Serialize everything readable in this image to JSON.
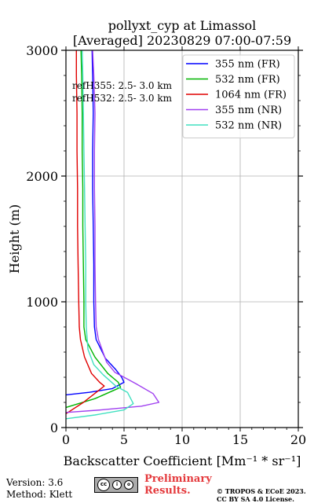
{
  "chart_data": {
    "type": "line",
    "title_line1": "pollyxt_cyp at Limassol",
    "title_line2": "[Averaged] 20230829 07:00-07:59",
    "xlabel": "Backscatter Coefficient [Mm⁻¹ * sr⁻¹]",
    "ylabel": "Height (m)",
    "xlim": [
      0,
      20
    ],
    "ylim": [
      0,
      3000
    ],
    "xticks": [
      0,
      5,
      10,
      15,
      20
    ],
    "yticks": [
      0,
      1000,
      2000,
      3000
    ],
    "grid": true,
    "legend_position": "top-right",
    "annotations": [
      "refH355:  2.5- 3.0 km",
      "refH532:  2.5- 3.0 km"
    ],
    "series": [
      {
        "name": "355 nm (FR)",
        "color": "#0000ff",
        "points": [
          [
            0.0,
            260
          ],
          [
            2.0,
            280
          ],
          [
            4.0,
            310
          ],
          [
            5.0,
            360
          ],
          [
            4.8,
            400
          ],
          [
            4.3,
            460
          ],
          [
            3.4,
            550
          ],
          [
            2.6,
            700
          ],
          [
            2.45,
            800
          ],
          [
            2.4,
            1000
          ],
          [
            2.4,
            1300
          ],
          [
            2.35,
            1600
          ],
          [
            2.3,
            1900
          ],
          [
            2.3,
            2200
          ],
          [
            2.35,
            2500
          ],
          [
            2.3,
            2800
          ],
          [
            2.25,
            3000
          ]
        ]
      },
      {
        "name": "532 nm (FR)",
        "color": "#00b400",
        "points": [
          [
            0.0,
            160
          ],
          [
            2.5,
            230
          ],
          [
            4.7,
            320
          ],
          [
            4.5,
            360
          ],
          [
            3.6,
            430
          ],
          [
            2.5,
            560
          ],
          [
            1.7,
            700
          ],
          [
            1.55,
            800
          ],
          [
            1.55,
            1000
          ],
          [
            1.5,
            1300
          ],
          [
            1.45,
            1600
          ],
          [
            1.45,
            1900
          ],
          [
            1.4,
            2200
          ],
          [
            1.4,
            2500
          ],
          [
            1.35,
            2800
          ],
          [
            1.3,
            3000
          ]
        ]
      },
      {
        "name": "1064 nm (FR)",
        "color": "#e00000",
        "points": [
          [
            0.0,
            110
          ],
          [
            1.5,
            200
          ],
          [
            3.3,
            330
          ],
          [
            2.9,
            360
          ],
          [
            2.2,
            430
          ],
          [
            1.6,
            560
          ],
          [
            1.25,
            700
          ],
          [
            1.15,
            800
          ],
          [
            1.1,
            1000
          ],
          [
            1.05,
            1300
          ],
          [
            1.0,
            1600
          ],
          [
            1.0,
            1900
          ],
          [
            0.95,
            2200
          ],
          [
            0.95,
            2500
          ],
          [
            0.9,
            2800
          ],
          [
            0.9,
            3000
          ]
        ]
      },
      {
        "name": "355 nm (NR)",
        "color": "#a040f0",
        "points": [
          [
            0.0,
            120
          ],
          [
            3.0,
            140
          ],
          [
            6.5,
            170
          ],
          [
            8.0,
            200
          ],
          [
            7.5,
            270
          ],
          [
            6.0,
            350
          ],
          [
            5.0,
            400
          ],
          [
            4.2,
            440
          ],
          [
            3.5,
            520
          ],
          [
            2.8,
            700
          ],
          [
            2.6,
            800
          ],
          [
            2.55,
            1000
          ],
          [
            2.5,
            1300
          ],
          [
            2.5,
            1600
          ],
          [
            2.45,
            1900
          ],
          [
            2.45,
            2200
          ],
          [
            2.5,
            2500
          ],
          [
            2.4,
            2800
          ],
          [
            2.3,
            3000
          ]
        ]
      },
      {
        "name": "532 nm (NR)",
        "color": "#40e0c0",
        "points": [
          [
            0.0,
            70
          ],
          [
            2.5,
            100
          ],
          [
            5.0,
            140
          ],
          [
            5.8,
            190
          ],
          [
            5.3,
            280
          ],
          [
            4.3,
            330
          ],
          [
            3.2,
            420
          ],
          [
            2.4,
            500
          ],
          [
            1.9,
            620
          ],
          [
            1.75,
            800
          ],
          [
            1.7,
            1000
          ],
          [
            1.7,
            1300
          ],
          [
            1.65,
            1600
          ],
          [
            1.6,
            1900
          ],
          [
            1.55,
            2200
          ],
          [
            1.5,
            2500
          ],
          [
            1.45,
            2800
          ],
          [
            1.4,
            3000
          ]
        ]
      }
    ]
  },
  "footer": {
    "version": "Version: 3.6",
    "method": "Method: Klett",
    "license_badge": "cc by sa",
    "preliminary_line1": "Preliminary",
    "preliminary_line2": "Results.",
    "copyright_line1": "© TROPOS & ECoE 2023.",
    "copyright_line2": "CC BY SA 4.0 License."
  }
}
